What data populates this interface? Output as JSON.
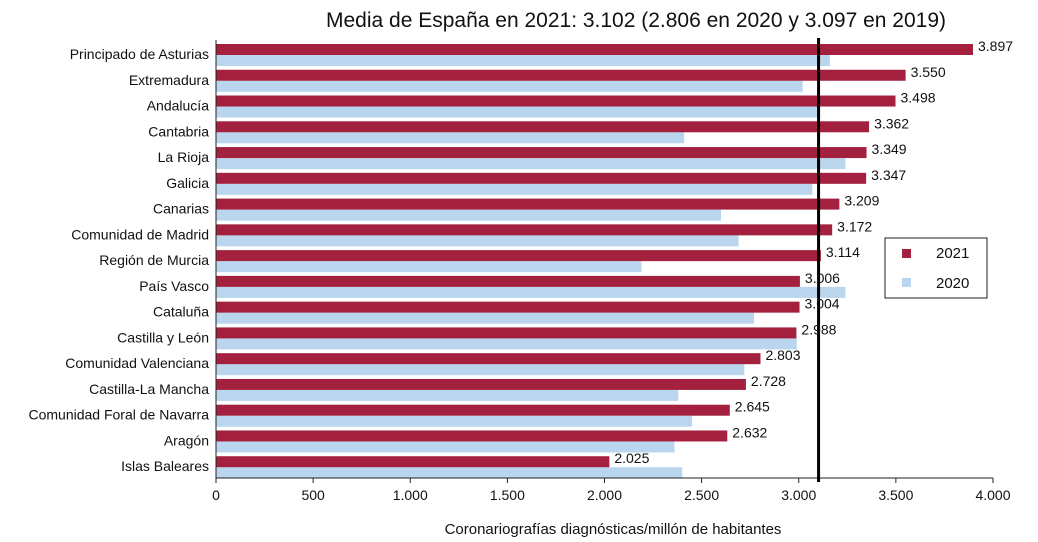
{
  "chart_data": {
    "type": "bar",
    "orientation": "horizontal",
    "title": "Media de España en 2021: 3.102 (2.806 en 2020 y 3.097 en 2019)",
    "xlabel": "Coronariografías diagnósticas/millón de habitantes",
    "ylabel": "",
    "xlim": [
      0,
      4000
    ],
    "xticks": [
      0,
      500,
      1000,
      1500,
      2000,
      2500,
      3000,
      3500,
      4000
    ],
    "xtick_labels": [
      "0",
      "500",
      "1.000",
      "1.500",
      "2.000",
      "2.500",
      "3.000",
      "3.500",
      "4.000"
    ],
    "reference_line": 3102,
    "legend_position": "right",
    "categories": [
      "Principado de Asturias",
      "Extremadura",
      "Andalucía",
      "Cantabria",
      "La Rioja",
      "Galicia",
      "Canarias",
      "Comunidad de Madrid",
      "Región de Murcia",
      "País Vasco",
      "Cataluña",
      "Castilla y León",
      "Comunidad Valenciana",
      "Castilla-La Mancha",
      "Comunidad Foral de Navarra",
      "Aragón",
      "Islas Baleares"
    ],
    "series": [
      {
        "name": "2021",
        "color": "#A3213F",
        "values": [
          3897,
          3550,
          3498,
          3362,
          3349,
          3347,
          3209,
          3172,
          3114,
          3006,
          3004,
          2988,
          2803,
          2728,
          2645,
          2632,
          2025
        ],
        "value_labels": [
          "3.897",
          "3.550",
          "3.498",
          "3.362",
          "3.349",
          "3.347",
          "3.209",
          "3.172",
          "3.114",
          "3.006",
          "3.004",
          "2.988",
          "2.803",
          "2.728",
          "2.645",
          "2.632",
          "2.025"
        ]
      },
      {
        "name": "2020",
        "color": "#B9D6EE",
        "values": [
          3160,
          3020,
          3110,
          2410,
          3240,
          3070,
          2600,
          2690,
          2190,
          3240,
          2770,
          2990,
          2720,
          2380,
          2450,
          2360,
          2400
        ]
      }
    ]
  }
}
